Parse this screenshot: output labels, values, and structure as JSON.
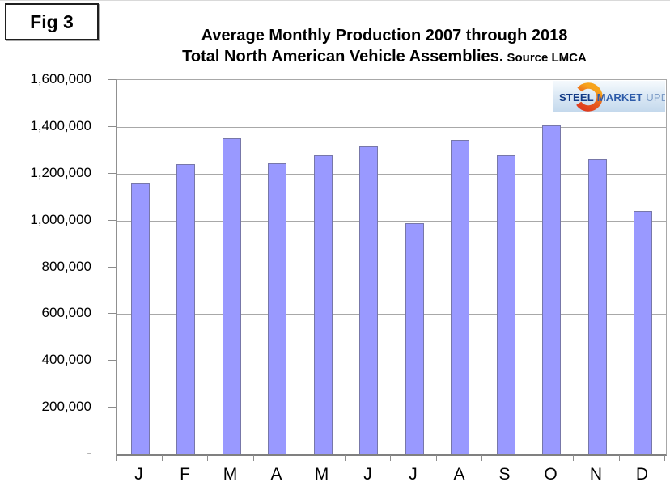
{
  "fig_label": "Fig 3",
  "title": {
    "line1": "Average Monthly Production 2007 through 2018",
    "line2": "Total North American Vehicle Assemblies.",
    "source": " Source LMCA"
  },
  "logo": {
    "steel": "STEEL",
    "market": "MARKET",
    "update": "UPDATE",
    "steel_color": "#123a86",
    "market_color": "#2d5ba9",
    "update_color": "#7e9dc7",
    "crescent_top_color": "#df3b1e",
    "crescent_bottom_color": "#f7a41d",
    "background_color": "#cfe0f0"
  },
  "chart_data": {
    "type": "bar",
    "title": "Average Monthly Production 2007 through 2018 - Total North American Vehicle Assemblies. Source LMCA",
    "categories": [
      "J",
      "F",
      "M",
      "A",
      "M",
      "J",
      "J",
      "A",
      "S",
      "O",
      "N",
      "D"
    ],
    "values": [
      1160000,
      1240000,
      1350000,
      1245000,
      1280000,
      1315000,
      990000,
      1345000,
      1280000,
      1405000,
      1260000,
      1040000
    ],
    "xlabel": "",
    "ylabel": "",
    "ylim": [
      0,
      1600000
    ],
    "ytick_interval": 200000,
    "ytick_labels_top_to_bottom": [
      "1,600,000",
      "1,400,000",
      "1,200,000",
      "1,000,000",
      "800,000",
      "600,000",
      "400,000",
      "200,000",
      "-"
    ],
    "grid": true,
    "legend": false,
    "bar_fill_color": "#9999FF",
    "bar_border_color": "#7777a8",
    "gridline_color": "#a8a8a8"
  }
}
